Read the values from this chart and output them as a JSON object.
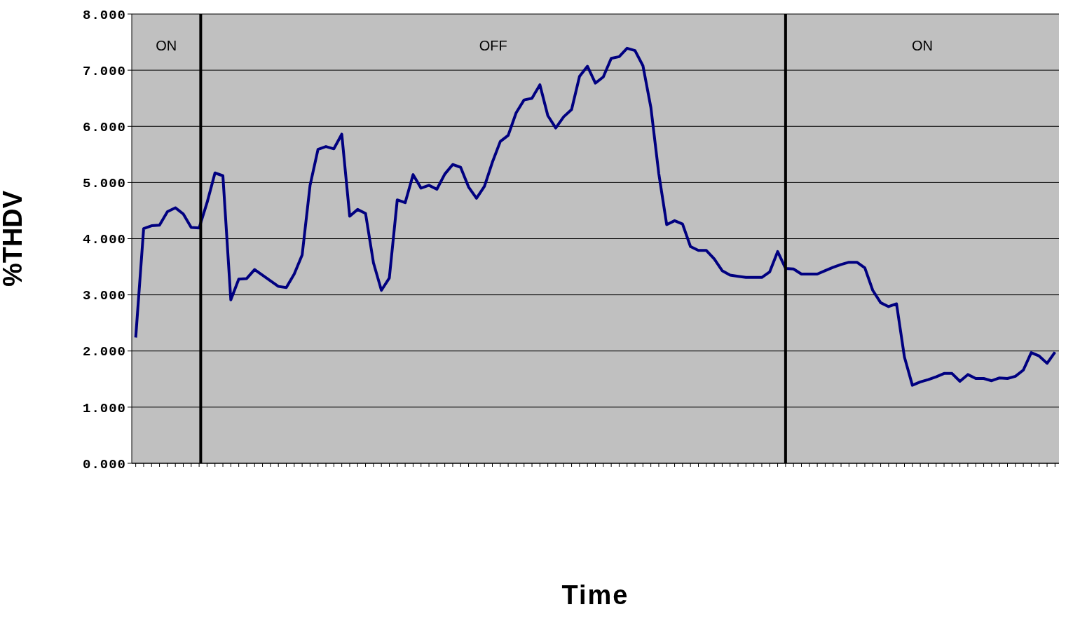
{
  "chart_data": {
    "type": "line",
    "xlabel": "Time",
    "ylabel": "%THDV",
    "categories": [
      null,
      null,
      null,
      null,
      null,
      null,
      null,
      null,
      null,
      null,
      null,
      null,
      null,
      null,
      null,
      null,
      null,
      null,
      null,
      null,
      null,
      null,
      null,
      null,
      null,
      null,
      null,
      null,
      null,
      null,
      null,
      null,
      null,
      null,
      null,
      null,
      null,
      null,
      null,
      null,
      null,
      null,
      null,
      null,
      null,
      null,
      null,
      null,
      null,
      null,
      null,
      null,
      null,
      null,
      null,
      null,
      null,
      null,
      null,
      null,
      null,
      null,
      null,
      null,
      null,
      null,
      null,
      null,
      null,
      null,
      null,
      null,
      null,
      null,
      null,
      null,
      null,
      null,
      null,
      null,
      null,
      null,
      null,
      null,
      null,
      null,
      null,
      null,
      null,
      null,
      null,
      null,
      null,
      null,
      null,
      null,
      null,
      null,
      null,
      null,
      null,
      null,
      null,
      null,
      null,
      null,
      null,
      null,
      null,
      null,
      null,
      null,
      null,
      null,
      null,
      null,
      null
    ],
    "series": [
      {
        "color": "#000080",
        "values": [
          2.24,
          4.18,
          4.23,
          4.24,
          4.48,
          4.55,
          4.44,
          4.2,
          4.19,
          4.64,
          5.17,
          5.12,
          2.91,
          3.28,
          3.29,
          3.45,
          3.35,
          3.25,
          3.15,
          3.13,
          3.37,
          3.71,
          4.95,
          5.59,
          5.64,
          5.6,
          5.86,
          4.4,
          4.52,
          4.45,
          3.57,
          3.08,
          3.3,
          4.69,
          4.64,
          5.14,
          4.9,
          4.95,
          4.88,
          5.15,
          5.32,
          5.27,
          4.92,
          4.72,
          4.93,
          5.36,
          5.73,
          5.84,
          6.24,
          6.47,
          6.5,
          6.74,
          6.19,
          5.97,
          6.17,
          6.3,
          6.89,
          7.07,
          6.77,
          6.88,
          7.21,
          7.24,
          7.39,
          7.35,
          7.08,
          6.34,
          5.16,
          4.25,
          4.32,
          4.26,
          3.86,
          3.79,
          3.79,
          3.64,
          3.43,
          3.35,
          3.33,
          3.31,
          3.31,
          3.31,
          3.41,
          3.77,
          3.47,
          3.46,
          3.37,
          3.37,
          3.37,
          3.43,
          3.49,
          3.54,
          3.58,
          3.58,
          3.48,
          3.08,
          2.86,
          2.79,
          2.84,
          1.89,
          1.39,
          1.45,
          1.49,
          1.54,
          1.6,
          1.6,
          1.46,
          1.58,
          1.51,
          1.51,
          1.47,
          1.52,
          1.51,
          1.55,
          1.66,
          1.97,
          1.91,
          1.78,
          1.98
        ]
      }
    ],
    "ylim": [
      0,
      8
    ],
    "yticks": [
      {
        "value": 0,
        "label": "0.000"
      },
      {
        "value": 1,
        "label": "1.000"
      },
      {
        "value": 2,
        "label": "2.000"
      },
      {
        "value": 3,
        "label": "3.000"
      },
      {
        "value": 4,
        "label": "4.000"
      },
      {
        "value": 5,
        "label": "5.000"
      },
      {
        "value": 6,
        "label": "6.000"
      },
      {
        "value": 7,
        "label": "7.000"
      },
      {
        "value": 8,
        "label": "8.000"
      }
    ],
    "grid": "y",
    "marker": "none",
    "line_style": "solid",
    "annotations": [
      "ON",
      "OFF",
      "ON"
    ]
  }
}
